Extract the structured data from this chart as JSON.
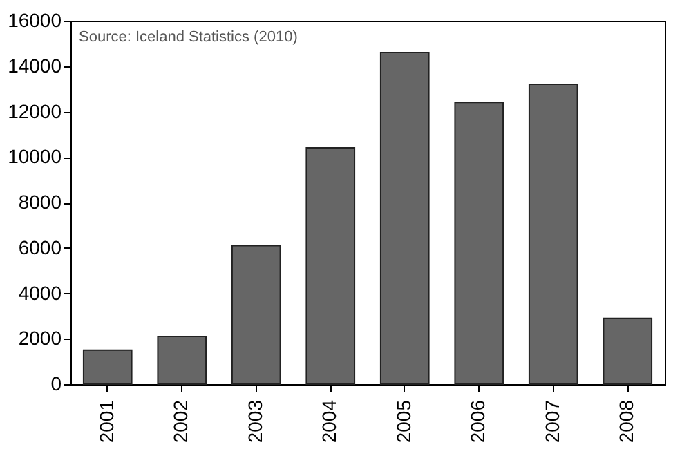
{
  "chart_data": {
    "type": "bar",
    "categories": [
      "2001",
      "2002",
      "2003",
      "2004",
      "2005",
      "2006",
      "2007",
      "2008"
    ],
    "values": [
      1500,
      2100,
      6100,
      10400,
      14600,
      12400,
      13200,
      2900
    ],
    "color": "#666666",
    "ylim": [
      0,
      16000
    ],
    "yticks": [
      0,
      2000,
      4000,
      6000,
      8000,
      10000,
      12000,
      14000,
      16000
    ],
    "grid": false,
    "annotations": [
      "Source: Iceland Statistics (2010)"
    ]
  }
}
